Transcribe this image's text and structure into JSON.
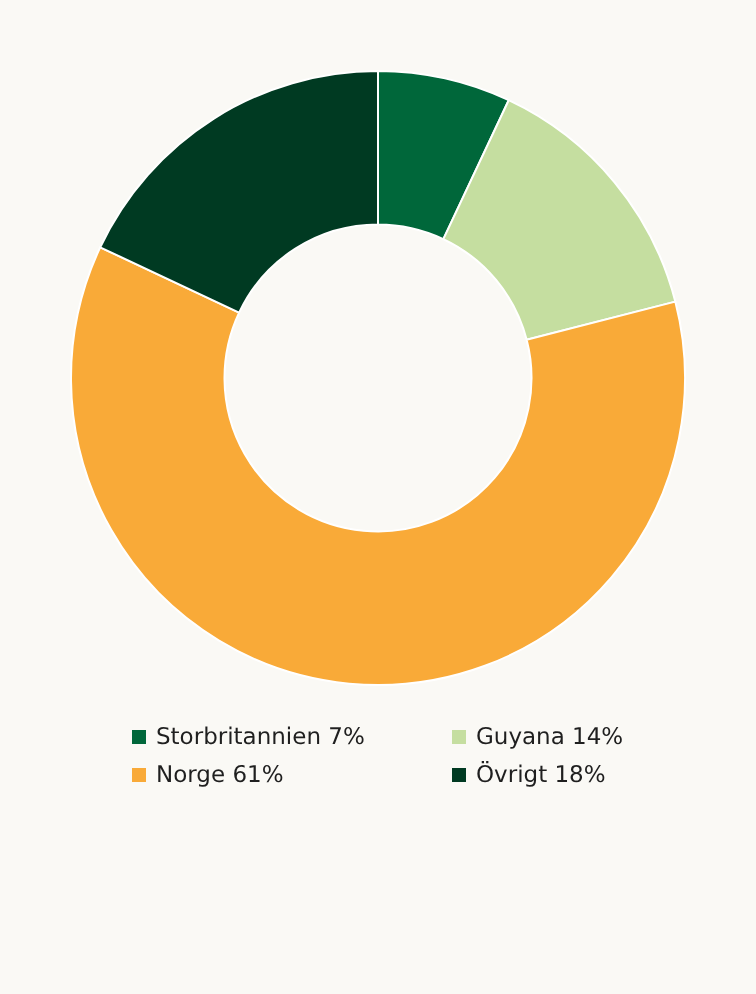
{
  "chart_data": {
    "type": "donut",
    "categories": [
      "Storbritannien",
      "Guyana",
      "Norge",
      "Övrigt"
    ],
    "values": [
      7,
      14,
      61,
      18
    ],
    "value_labels": [
      "7%",
      "14%",
      "61%",
      "18%"
    ],
    "colors": [
      "#00673a",
      "#c5dea0",
      "#f9aa38",
      "#003a22"
    ],
    "legend": "bottom"
  }
}
